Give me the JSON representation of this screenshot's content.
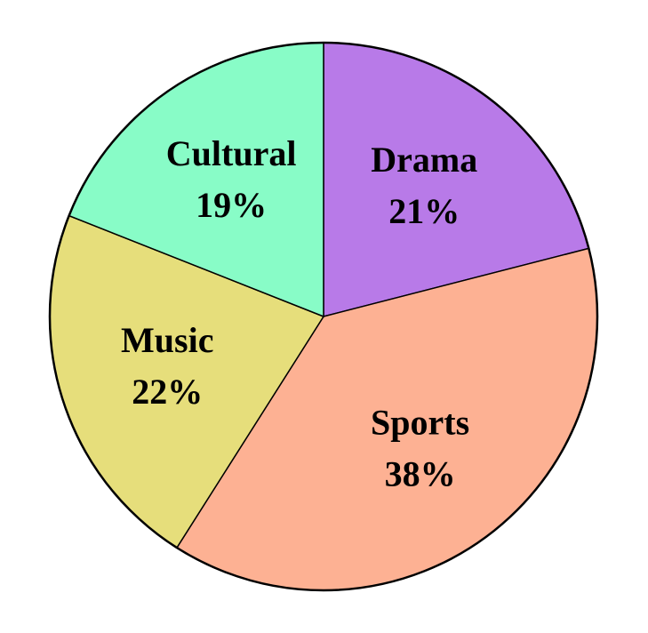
{
  "chart_data": {
    "type": "pie",
    "title": "",
    "start_angle_deg": 0,
    "direction": "clockwise",
    "slices": [
      {
        "label": "Drama",
        "percent_label": "21%",
        "value": 21,
        "color": "#b87ae8"
      },
      {
        "label": "Sports",
        "percent_label": "38%",
        "value": 38,
        "color": "#fdb193"
      },
      {
        "label": "Music",
        "percent_label": "22%",
        "value": 22,
        "color": "#e6de7b"
      },
      {
        "label": "Cultural",
        "percent_label": "19%",
        "value": 19,
        "color": "#88fcc7"
      }
    ],
    "outline_color": "#000000"
  }
}
